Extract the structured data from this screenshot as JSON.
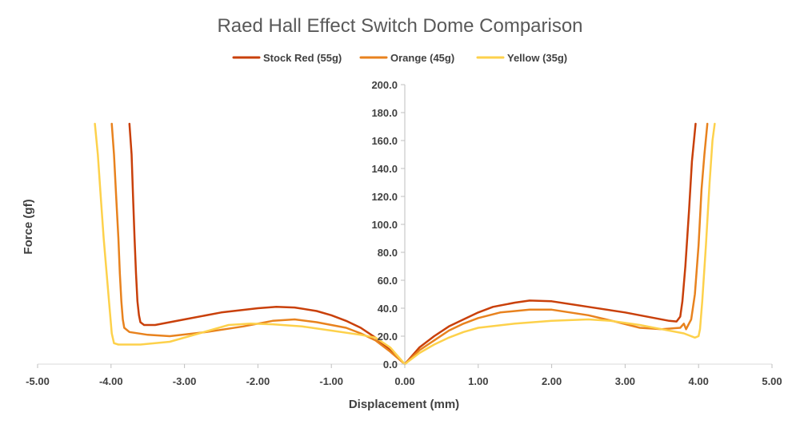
{
  "chart_data": {
    "type": "line",
    "title": "Raed Hall Effect Switch Dome Comparison",
    "xlabel": "Displacement (mm)",
    "ylabel": "Force (gf)",
    "xlim": [
      -5,
      5
    ],
    "ylim": [
      0,
      200
    ],
    "x_ticks": [
      "-5.00",
      "-4.00",
      "-3.00",
      "-2.00",
      "-1.00",
      "0.00",
      "1.00",
      "2.00",
      "3.00",
      "4.00",
      "5.00"
    ],
    "y_ticks": [
      "0.0",
      "20.0",
      "40.0",
      "60.0",
      "80.0",
      "100.0",
      "120.0",
      "140.0",
      "160.0",
      "180.0",
      "200.0"
    ],
    "legend_position": "top",
    "series": [
      {
        "name": "Stock Red (55g)",
        "color": "#c9400a",
        "points": [
          [
            -3.75,
            172
          ],
          [
            -3.72,
            150
          ],
          [
            -3.7,
            120
          ],
          [
            -3.68,
            90
          ],
          [
            -3.66,
            65
          ],
          [
            -3.64,
            45
          ],
          [
            -3.62,
            35
          ],
          [
            -3.6,
            30
          ],
          [
            -3.55,
            28
          ],
          [
            -3.4,
            28
          ],
          [
            -3.0,
            32
          ],
          [
            -2.5,
            37
          ],
          [
            -2.0,
            40
          ],
          [
            -1.75,
            41
          ],
          [
            -1.5,
            40.5
          ],
          [
            -1.2,
            38
          ],
          [
            -1.0,
            35
          ],
          [
            -0.8,
            31
          ],
          [
            -0.6,
            26
          ],
          [
            -0.4,
            19
          ],
          [
            -0.2,
            10
          ],
          [
            0.0,
            0
          ],
          [
            0.2,
            12
          ],
          [
            0.4,
            20
          ],
          [
            0.6,
            27
          ],
          [
            0.8,
            32
          ],
          [
            1.0,
            37
          ],
          [
            1.2,
            41
          ],
          [
            1.5,
            44
          ],
          [
            1.7,
            45.5
          ],
          [
            2.0,
            45
          ],
          [
            2.5,
            41
          ],
          [
            3.0,
            37
          ],
          [
            3.4,
            33
          ],
          [
            3.6,
            31
          ],
          [
            3.7,
            30.5
          ],
          [
            3.75,
            34
          ],
          [
            3.78,
            45
          ],
          [
            3.82,
            70
          ],
          [
            3.87,
            110
          ],
          [
            3.91,
            145
          ],
          [
            3.96,
            172
          ]
        ]
      },
      {
        "name": "Orange (45g)",
        "color": "#e8821e",
        "points": [
          [
            -3.99,
            172
          ],
          [
            -3.96,
            150
          ],
          [
            -3.93,
            120
          ],
          [
            -3.9,
            90
          ],
          [
            -3.88,
            65
          ],
          [
            -3.86,
            45
          ],
          [
            -3.84,
            32
          ],
          [
            -3.82,
            26
          ],
          [
            -3.75,
            23
          ],
          [
            -3.5,
            21
          ],
          [
            -3.2,
            20
          ],
          [
            -2.7,
            23
          ],
          [
            -2.2,
            27
          ],
          [
            -1.8,
            31
          ],
          [
            -1.5,
            32
          ],
          [
            -1.2,
            30
          ],
          [
            -1.0,
            28
          ],
          [
            -0.8,
            26
          ],
          [
            -0.6,
            22
          ],
          [
            -0.4,
            17
          ],
          [
            -0.2,
            9
          ],
          [
            0.0,
            0
          ],
          [
            0.2,
            10
          ],
          [
            0.4,
            17
          ],
          [
            0.6,
            24
          ],
          [
            0.8,
            29
          ],
          [
            1.0,
            33
          ],
          [
            1.3,
            37
          ],
          [
            1.7,
            39
          ],
          [
            2.0,
            39
          ],
          [
            2.5,
            35
          ],
          [
            2.9,
            30
          ],
          [
            3.2,
            26
          ],
          [
            3.5,
            25
          ],
          [
            3.75,
            26
          ],
          [
            3.8,
            29
          ],
          [
            3.83,
            25
          ],
          [
            3.86,
            28
          ],
          [
            3.9,
            32
          ],
          [
            3.95,
            50
          ],
          [
            4.0,
            85
          ],
          [
            4.04,
            125
          ],
          [
            4.08,
            150
          ],
          [
            4.12,
            172
          ]
        ]
      },
      {
        "name": "Yellow (35g)",
        "color": "#fdd14b",
        "points": [
          [
            -4.22,
            172
          ],
          [
            -4.18,
            150
          ],
          [
            -4.14,
            120
          ],
          [
            -4.1,
            90
          ],
          [
            -4.06,
            65
          ],
          [
            -4.02,
            40
          ],
          [
            -3.99,
            22
          ],
          [
            -3.96,
            15
          ],
          [
            -3.9,
            14
          ],
          [
            -3.6,
            14
          ],
          [
            -3.2,
            16
          ],
          [
            -2.8,
            22
          ],
          [
            -2.4,
            28
          ],
          [
            -2.1,
            29
          ],
          [
            -1.8,
            28.5
          ],
          [
            -1.4,
            27
          ],
          [
            -1.0,
            24
          ],
          [
            -0.6,
            21
          ],
          [
            -0.4,
            19
          ],
          [
            -0.2,
            12
          ],
          [
            0.0,
            0
          ],
          [
            0.2,
            8
          ],
          [
            0.4,
            14
          ],
          [
            0.6,
            19
          ],
          [
            0.8,
            23
          ],
          [
            1.0,
            26
          ],
          [
            1.5,
            29
          ],
          [
            2.0,
            31
          ],
          [
            2.5,
            32
          ],
          [
            2.8,
            31
          ],
          [
            3.2,
            28
          ],
          [
            3.5,
            25
          ],
          [
            3.8,
            22
          ],
          [
            3.95,
            19
          ],
          [
            4.0,
            20
          ],
          [
            4.02,
            25
          ],
          [
            4.05,
            45
          ],
          [
            4.1,
            85
          ],
          [
            4.15,
            130
          ],
          [
            4.19,
            160
          ],
          [
            4.22,
            172
          ]
        ]
      }
    ]
  }
}
